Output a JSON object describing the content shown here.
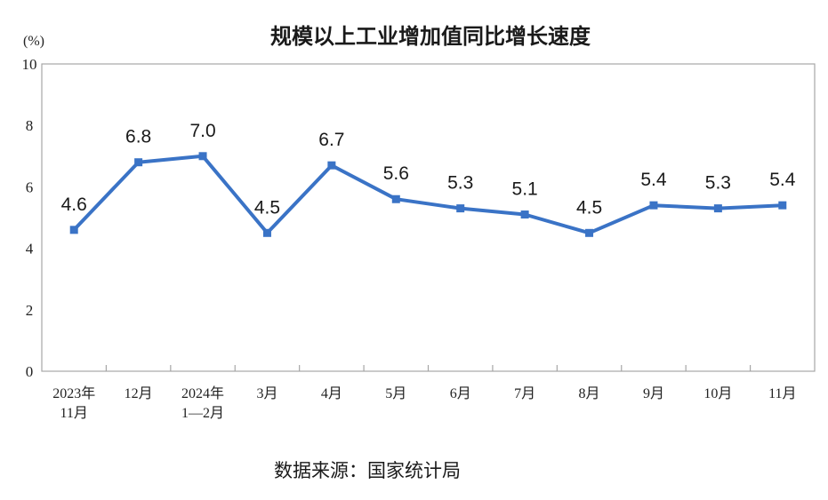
{
  "chart_data": {
    "type": "line",
    "title": "规模以上工业增加值同比增长速度",
    "unit_label": "(%)",
    "ylim": [
      0,
      10
    ],
    "yticks": [
      "0",
      "2",
      "4",
      "6",
      "8",
      "10"
    ],
    "categories": [
      [
        "2023年",
        "11月"
      ],
      [
        "12月"
      ],
      [
        "2024年",
        "1—2月"
      ],
      [
        "3月"
      ],
      [
        "4月"
      ],
      [
        "5月"
      ],
      [
        "6月"
      ],
      [
        "7月"
      ],
      [
        "8月"
      ],
      [
        "9月"
      ],
      [
        "10月"
      ],
      [
        "11月"
      ]
    ],
    "values": [
      4.6,
      6.8,
      7.0,
      4.5,
      6.7,
      5.6,
      5.3,
      5.1,
      4.5,
      5.4,
      5.3,
      5.4
    ],
    "value_labels": [
      "4.6",
      "6.8",
      "7.0",
      "4.5",
      "6.7",
      "5.6",
      "5.3",
      "5.1",
      "4.5",
      "5.4",
      "5.3",
      "5.4"
    ],
    "series_color": "#3a73c6",
    "grid": false
  },
  "source_text": "数据来源：国家统计局"
}
